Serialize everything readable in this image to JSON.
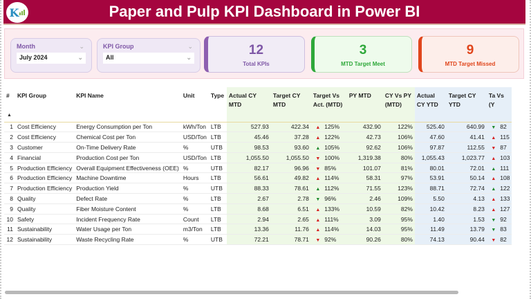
{
  "header": {
    "title": "Paper and Pulp KPI Dashboard in Power BI",
    "logo_icon": "kpi-logo-icon"
  },
  "filters": {
    "month": {
      "label": "Month",
      "value": "July 2024"
    },
    "kpi_group": {
      "label": "KPI Group",
      "value": "All"
    }
  },
  "cards": {
    "total": {
      "value": "12",
      "label": "Total KPIs",
      "color": "#7e57a6"
    },
    "meet": {
      "value": "3",
      "label": "MTD Target Meet",
      "color": "#2ea83a"
    },
    "missed": {
      "value": "9",
      "label": "MTD Target Missed",
      "color": "#e0461c"
    }
  },
  "table": {
    "headers": {
      "num": "#",
      "group": "KPI Group",
      "name": "KPI Name",
      "unit": "Unit",
      "type": "Type",
      "actual_mtd": "Actual CY MTD",
      "target_mtd": "Target CY MTD",
      "tva_mtd": "Target Vs Act. (MTD)",
      "py_mtd": "PY MTD",
      "cyvspy_mtd": "CY Vs PY (MTD)",
      "actual_ytd": "Actual CY YTD",
      "target_ytd": "Target CY YTD",
      "tva_ytd": "Ta Vs (Y"
    },
    "rows": [
      {
        "n": "1",
        "group": "Cost Efficiency",
        "name": "Energy Consumption per Ton",
        "unit": "kWh/Ton",
        "type": "LTB",
        "a_mtd": "527.93",
        "t_mtd": "422.34",
        "tva_icon": "▲",
        "tva_color": "red",
        "tva": "125%",
        "py": "432.90",
        "cvp": "122%",
        "a_ytd": "525.40",
        "t_ytd": "640.99",
        "tvy_icon": "▼",
        "tvy_color": "green",
        "tvy": "82"
      },
      {
        "n": "2",
        "group": "Cost Efficiency",
        "name": "Chemical Cost per Ton",
        "unit": "USD/Ton",
        "type": "LTB",
        "a_mtd": "45.46",
        "t_mtd": "37.28",
        "tva_icon": "▲",
        "tva_color": "red",
        "tva": "122%",
        "py": "42.73",
        "cvp": "106%",
        "a_ytd": "47.60",
        "t_ytd": "41.41",
        "tvy_icon": "▲",
        "tvy_color": "red",
        "tvy": "115"
      },
      {
        "n": "3",
        "group": "Customer",
        "name": "On-Time Delivery Rate",
        "unit": "%",
        "type": "UTB",
        "a_mtd": "98.53",
        "t_mtd": "93.60",
        "tva_icon": "▲",
        "tva_color": "green",
        "tva": "105%",
        "py": "92.62",
        "cvp": "106%",
        "a_ytd": "97.87",
        "t_ytd": "112.55",
        "tvy_icon": "▼",
        "tvy_color": "red",
        "tvy": "87"
      },
      {
        "n": "4",
        "group": "Financial",
        "name": "Production Cost per Ton",
        "unit": "USD/Ton",
        "type": "LTB",
        "a_mtd": "1,055.50",
        "t_mtd": "1,055.50",
        "tva_icon": "▼",
        "tva_color": "red",
        "tva": "100%",
        "py": "1,319.38",
        "cvp": "80%",
        "a_ytd": "1,055.43",
        "t_ytd": "1,023.77",
        "tvy_icon": "▲",
        "tvy_color": "red",
        "tvy": "103"
      },
      {
        "n": "5",
        "group": "Production Efficiency",
        "name": "Overall Equipment Effectiveness (OEE)",
        "unit": "%",
        "type": "UTB",
        "a_mtd": "82.17",
        "t_mtd": "96.96",
        "tva_icon": "▼",
        "tva_color": "red",
        "tva": "85%",
        "py": "101.07",
        "cvp": "81%",
        "a_ytd": "80.01",
        "t_ytd": "72.01",
        "tvy_icon": "▲",
        "tvy_color": "green",
        "tvy": "111"
      },
      {
        "n": "6",
        "group": "Production Efficiency",
        "name": "Machine Downtime",
        "unit": "Hours",
        "type": "LTB",
        "a_mtd": "56.61",
        "t_mtd": "49.82",
        "tva_icon": "▲",
        "tva_color": "red",
        "tva": "114%",
        "py": "58.31",
        "cvp": "97%",
        "a_ytd": "53.91",
        "t_ytd": "50.14",
        "tvy_icon": "▲",
        "tvy_color": "red",
        "tvy": "108"
      },
      {
        "n": "7",
        "group": "Production Efficiency",
        "name": "Production Yield",
        "unit": "%",
        "type": "UTB",
        "a_mtd": "88.33",
        "t_mtd": "78.61",
        "tva_icon": "▲",
        "tva_color": "green",
        "tva": "112%",
        "py": "71.55",
        "cvp": "123%",
        "a_ytd": "88.71",
        "t_ytd": "72.74",
        "tvy_icon": "▲",
        "tvy_color": "green",
        "tvy": "122"
      },
      {
        "n": "8",
        "group": "Quality",
        "name": "Defect Rate",
        "unit": "%",
        "type": "LTB",
        "a_mtd": "2.67",
        "t_mtd": "2.78",
        "tva_icon": "▼",
        "tva_color": "green",
        "tva": "96%",
        "py": "2.46",
        "cvp": "109%",
        "a_ytd": "5.50",
        "t_ytd": "4.13",
        "tvy_icon": "▲",
        "tvy_color": "red",
        "tvy": "133"
      },
      {
        "n": "9",
        "group": "Quality",
        "name": "Fiber Moisture Content",
        "unit": "%",
        "type": "LTB",
        "a_mtd": "8.68",
        "t_mtd": "6.51",
        "tva_icon": "▲",
        "tva_color": "red",
        "tva": "133%",
        "py": "10.59",
        "cvp": "82%",
        "a_ytd": "10.42",
        "t_ytd": "8.23",
        "tvy_icon": "▲",
        "tvy_color": "red",
        "tvy": "127"
      },
      {
        "n": "10",
        "group": "Safety",
        "name": "Incident Frequency Rate",
        "unit": "Count",
        "type": "LTB",
        "a_mtd": "2.94",
        "t_mtd": "2.65",
        "tva_icon": "▲",
        "tva_color": "red",
        "tva": "111%",
        "py": "3.09",
        "cvp": "95%",
        "a_ytd": "1.40",
        "t_ytd": "1.53",
        "tvy_icon": "▼",
        "tvy_color": "green",
        "tvy": "92"
      },
      {
        "n": "11",
        "group": "Sustainability",
        "name": "Water Usage per Ton",
        "unit": "m3/Ton",
        "type": "LTB",
        "a_mtd": "13.36",
        "t_mtd": "11.76",
        "tva_icon": "▲",
        "tva_color": "red",
        "tva": "114%",
        "py": "14.03",
        "cvp": "95%",
        "a_ytd": "11.49",
        "t_ytd": "13.79",
        "tvy_icon": "▼",
        "tvy_color": "green",
        "tvy": "83"
      },
      {
        "n": "12",
        "group": "Sustainability",
        "name": "Waste Recycling Rate",
        "unit": "%",
        "type": "UTB",
        "a_mtd": "72.21",
        "t_mtd": "78.71",
        "tva_icon": "▼",
        "tva_color": "red",
        "tva": "92%",
        "py": "90.26",
        "cvp": "80%",
        "a_ytd": "74.13",
        "t_ytd": "90.44",
        "tvy_icon": "▼",
        "tvy_color": "red",
        "tvy": "82"
      }
    ]
  },
  "colors": {
    "header_bg": "#a5053f",
    "green_col": "#eef8e6",
    "blue_col": "#e6eff8",
    "red": "#d62121",
    "green": "#1e8a2e"
  }
}
